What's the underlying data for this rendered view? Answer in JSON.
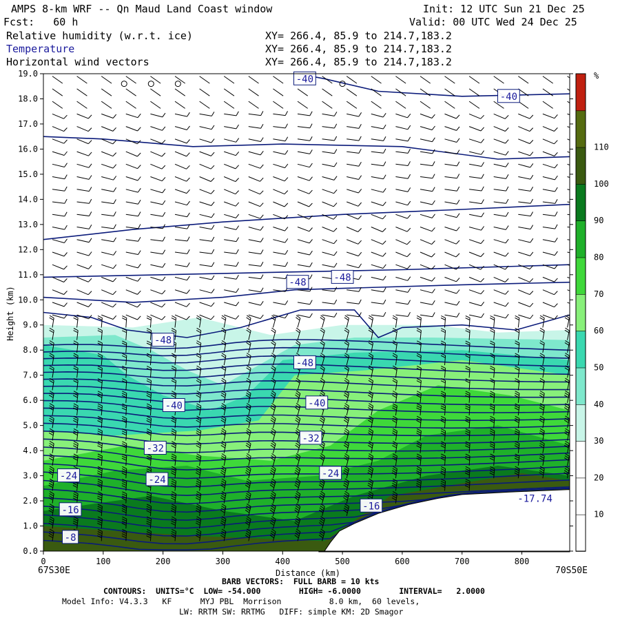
{
  "header": {
    "title": "AMPS 8-km WRF -- Qn Maud Land Coast window",
    "init": "Init: 12 UTC Sun 21 Dec 25",
    "fcst": "Fcst:   60 h",
    "valid": "Valid: 00 UTC Wed 24 Dec 25",
    "lines": [
      {
        "label": "Relative humidity (w.r.t. ice)",
        "xy": "XY= 266.4, 85.9 to 214.7,183.2"
      },
      {
        "label": "Temperature",
        "xy": "XY= 266.4, 85.9 to 214.7,183.2"
      },
      {
        "label": "Horizontal wind vectors",
        "xy": "XY= 266.4, 85.9 to 214.7,183.2"
      }
    ]
  },
  "footer": {
    "left_end": "67S30E",
    "right_end": "70S50E",
    "barb": "BARB VECTORS:  FULL BARB = 10 kts",
    "contours": "CONTOURS:  UNITS=°C  LOW= -54.000        HIGH= -6.0000        INTERVAL=   2.0000",
    "model1": "Model Info: V4.3.3   KF      MYJ PBL  Morrison          8.0 km,  60 levels,",
    "model2": "LW: RRTM SW: RRTMG   DIFF: simple KM: 2D Smagor"
  },
  "colors": {
    "contour": "#0a1a7a",
    "barb": "#000000",
    "terrain": "#ffffff"
  },
  "chart_data": {
    "type": "heatmap",
    "xlabel": "Distance (km)",
    "ylabel": "Height (km)",
    "xlim": [
      0,
      880
    ],
    "ylim": [
      0,
      19
    ],
    "x_ticks": [
      0,
      100,
      200,
      300,
      400,
      500,
      600,
      700,
      800
    ],
    "y_ticks": [
      "0.0",
      "1.0",
      "2.0",
      "3.0",
      "4.0",
      "5.0",
      "6.0",
      "7.0",
      "8.0",
      "9.0",
      "10.0",
      "11.0",
      "12.0",
      "13.0",
      "14.0",
      "15.0",
      "16.0",
      "17.0",
      "18.0",
      "19.0"
    ],
    "colorbar": {
      "unit": "%",
      "labels": [
        10,
        20,
        30,
        40,
        50,
        60,
        70,
        80,
        90,
        100,
        110
      ],
      "colors": [
        "#ffffff",
        "#ffffff",
        "#ffffff",
        "#c8f5e8",
        "#7ee8cc",
        "#3ad8b0",
        "#88f07a",
        "#3fd83a",
        "#1fb02a",
        "#0a7a1e",
        "#3a5a10",
        "#556b10",
        "#c02010"
      ]
    },
    "contour_labels": [
      {
        "text": "-40",
        "x": 437,
        "y": 18.8
      },
      {
        "text": "-40",
        "x": 778,
        "y": 18.1
      },
      {
        "text": "-48",
        "x": 425,
        "y": 10.7
      },
      {
        "text": "-48",
        "x": 500,
        "y": 10.9
      },
      {
        "text": "-48",
        "x": 200,
        "y": 8.4
      },
      {
        "text": "-48",
        "x": 437,
        "y": 7.5
      },
      {
        "text": "-40",
        "x": 218,
        "y": 5.8
      },
      {
        "text": "-40",
        "x": 457,
        "y": 5.9
      },
      {
        "text": "-32",
        "x": 187,
        "y": 4.1
      },
      {
        "text": "-32",
        "x": 447,
        "y": 4.5
      },
      {
        "text": "-24",
        "x": 42,
        "y": 3.0
      },
      {
        "text": "-24",
        "x": 190,
        "y": 2.85
      },
      {
        "text": "-24",
        "x": 480,
        "y": 3.1
      },
      {
        "text": "-16",
        "x": 45,
        "y": 1.65
      },
      {
        "text": "-16",
        "x": 548,
        "y": 1.8
      },
      {
        "text": "-8",
        "x": 45,
        "y": 0.55
      },
      {
        "text": "-17.74",
        "x": 822,
        "y": 2.1
      }
    ]
  }
}
